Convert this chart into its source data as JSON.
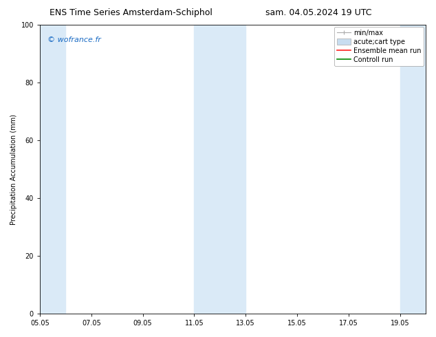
{
  "title_left": "ENS Time Series Amsterdam-Schiphol",
  "title_right": "sam. 04.05.2024 19 UTC",
  "ylabel": "Precipitation Accumulation (mm)",
  "ylim": [
    0,
    100
  ],
  "yticks": [
    0,
    20,
    40,
    60,
    80,
    100
  ],
  "xtick_labels": [
    "05.05",
    "07.05",
    "09.05",
    "11.05",
    "13.05",
    "15.05",
    "17.05",
    "19.05"
  ],
  "xtick_positions": [
    0,
    2,
    4,
    6,
    8,
    10,
    12,
    14
  ],
  "xlim": [
    0,
    15
  ],
  "shade_bands": [
    {
      "x_start": 0.0,
      "x_end": 1.0
    },
    {
      "x_start": 6.0,
      "x_end": 8.0
    },
    {
      "x_start": 14.0,
      "x_end": 15.0
    }
  ],
  "shade_color": "#daeaf7",
  "watermark": "© wofrance.fr",
  "watermark_color": "#1a6bc4",
  "background_color": "#ffffff",
  "legend_labels": [
    "min/max",
    "acute;cart type",
    "Ensemble mean run",
    "Controll run"
  ],
  "legend_colors": [
    "#aaaaaa",
    "#c8ddf0",
    "#ff0000",
    "#008800"
  ],
  "font_size_title": 9,
  "font_size_tick": 7,
  "font_size_ylabel": 7,
  "font_size_legend": 7,
  "font_size_watermark": 8
}
